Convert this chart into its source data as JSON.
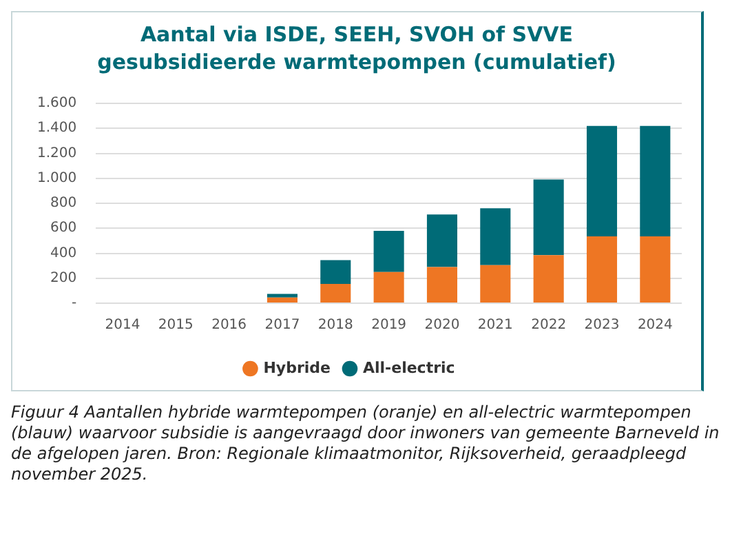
{
  "chart_data": {
    "type": "bar",
    "title": "Aantal via ISDE, SEEH, SVOH of SVVE gesubsidieerde warmtepompen (cumulatief)",
    "categories": [
      "2014",
      "2015",
      "2016",
      "2017",
      "2018",
      "2019",
      "2020",
      "2021",
      "2022",
      "2023",
      "2024"
    ],
    "series": [
      {
        "name": "Hybride",
        "color": "#ee7623",
        "values": [
          0,
          0,
          0,
          45,
          155,
          250,
          290,
          305,
          385,
          535,
          535
        ]
      },
      {
        "name": "All-electric",
        "color": "#006b77",
        "values": [
          0,
          0,
          0,
          30,
          190,
          330,
          420,
          455,
          605,
          885,
          885
        ]
      }
    ],
    "stacked": true,
    "ylim": [
      0,
      1600
    ],
    "yticks": [
      {
        "value": 0,
        "label": "-"
      },
      {
        "value": 200,
        "label": "200"
      },
      {
        "value": 400,
        "label": "400"
      },
      {
        "value": 600,
        "label": "600"
      },
      {
        "value": 800,
        "label": "800"
      },
      {
        "value": 1000,
        "label": "1.000"
      },
      {
        "value": 1200,
        "label": "1.200"
      },
      {
        "value": 1400,
        "label": "1.400"
      },
      {
        "value": 1600,
        "label": "1.600"
      }
    ],
    "grid": "y",
    "legend": "bottom",
    "annotations": [
      "Figuur 4 Aantallen hybride warmtepompen (oranje) en all-electric warmtepompen (blauw) waarvoor subsidie is aangevraagd door inwoners van gemeente Barneveld in de afgelopen jaren. Bron: Regionale klimaatmonitor, Rijksoverheid, geraadpleegd november 2025."
    ]
  }
}
